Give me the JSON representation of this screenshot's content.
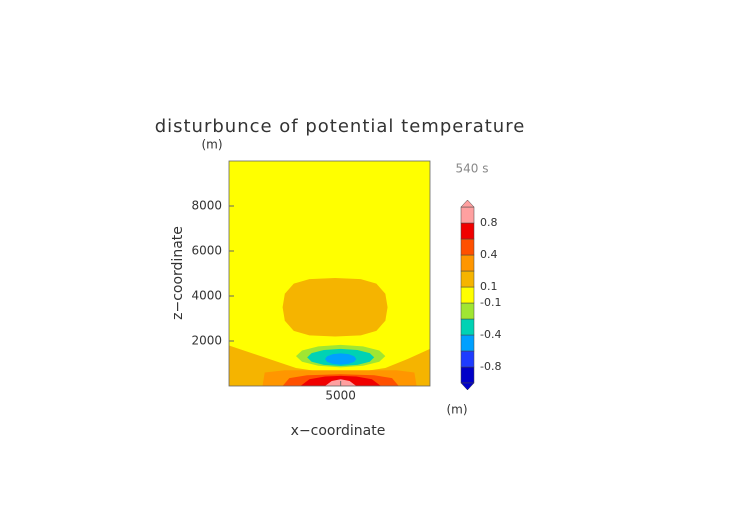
{
  "chart_data": {
    "type": "contour",
    "title": "disturbunce of potential temperature",
    "y_unit": "(m)",
    "x_unit": "(m)",
    "time_label": "540 s",
    "x_label": "x−coordinate",
    "y_label": "z−coordinate",
    "xlim": [
      0,
      9000
    ],
    "ylim": [
      0,
      10000
    ],
    "xticks": [
      5000
    ],
    "yticks": [
      2000,
      4000,
      6000,
      8000
    ],
    "colorbar": {
      "levels": [
        -0.8,
        -0.6,
        -0.4,
        -0.2,
        -0.1,
        0.1,
        0.2,
        0.4,
        0.6,
        0.8
      ],
      "colors": [
        "#0000c8",
        "#1e3cff",
        "#00a0ff",
        "#00d2b4",
        "#a0e632",
        "#ffff00",
        "#f5b400",
        "#ff9600",
        "#ff5000",
        "#f00000",
        "#ffa0a0"
      ],
      "ticks": [
        -0.8,
        -0.4,
        -0.1,
        0.1,
        0.4,
        0.8
      ]
    },
    "contours": [
      {
        "value": 0.1,
        "x": [
          2400,
          2500,
          2900,
          3600,
          4750,
          5900,
          6600,
          7000,
          7100,
          7000,
          6600,
          5900,
          4750,
          3600,
          2900,
          2500
        ],
        "z": [
          3500,
          4100,
          4550,
          4750,
          4800,
          4750,
          4550,
          4100,
          3500,
          2900,
          2450,
          2250,
          2200,
          2250,
          2450,
          2900
        ]
      },
      {
        "value": 0.1,
        "x": [
          0,
          0,
          1500,
          3000,
          4000,
          5000,
          6000,
          7000,
          8000,
          9000,
          9000
        ],
        "z": [
          0,
          1800,
          1300,
          800,
          650,
          600,
          650,
          800,
          1200,
          1650,
          0
        ]
      },
      {
        "value": 0.2,
        "x": [
          1500,
          1600,
          2500,
          5000,
          7500,
          8300,
          8400
        ],
        "z": [
          0,
          600,
          700,
          700,
          700,
          600,
          0
        ]
      },
      {
        "value": 0.4,
        "x": [
          2400,
          2700,
          3500,
          5000,
          6500,
          7300,
          7600
        ],
        "z": [
          0,
          350,
          480,
          520,
          480,
          350,
          0
        ]
      },
      {
        "value": 0.6,
        "x": [
          3200,
          3600,
          4300,
          5000,
          5700,
          6400,
          6800
        ],
        "z": [
          0,
          300,
          420,
          450,
          420,
          300,
          0
        ]
      },
      {
        "value": 0.8,
        "x": [
          4300,
          4600,
          5000,
          5400,
          5700
        ],
        "z": [
          0,
          220,
          300,
          220,
          0
        ]
      },
      {
        "value": -0.1,
        "x": [
          7000,
          6730,
          6000,
          5000,
          4000,
          3270,
          3000,
          3270,
          4000,
          5000,
          6000,
          6730
        ],
        "z": [
          1330,
          1580,
          1760,
          1830,
          1760,
          1580,
          1330,
          1080,
          900,
          830,
          900,
          1080
        ]
      },
      {
        "value": -0.2,
        "x": [
          6500,
          6300,
          5750,
          5000,
          4250,
          3700,
          3500,
          3700,
          4250,
          5000,
          5750,
          6300
        ],
        "z": [
          1270,
          1460,
          1600,
          1650,
          1600,
          1460,
          1270,
          1080,
          940,
          890,
          940,
          1080
        ]
      },
      {
        "value": -0.4,
        "x": [
          5700,
          5606,
          5350,
          5000,
          4650,
          4394,
          4300,
          4394,
          4650,
          5000,
          5350,
          5606
        ],
        "z": [
          1200,
          1325,
          1417,
          1450,
          1417,
          1325,
          1200,
          1075,
          983,
          950,
          983,
          1075
        ]
      }
    ]
  }
}
